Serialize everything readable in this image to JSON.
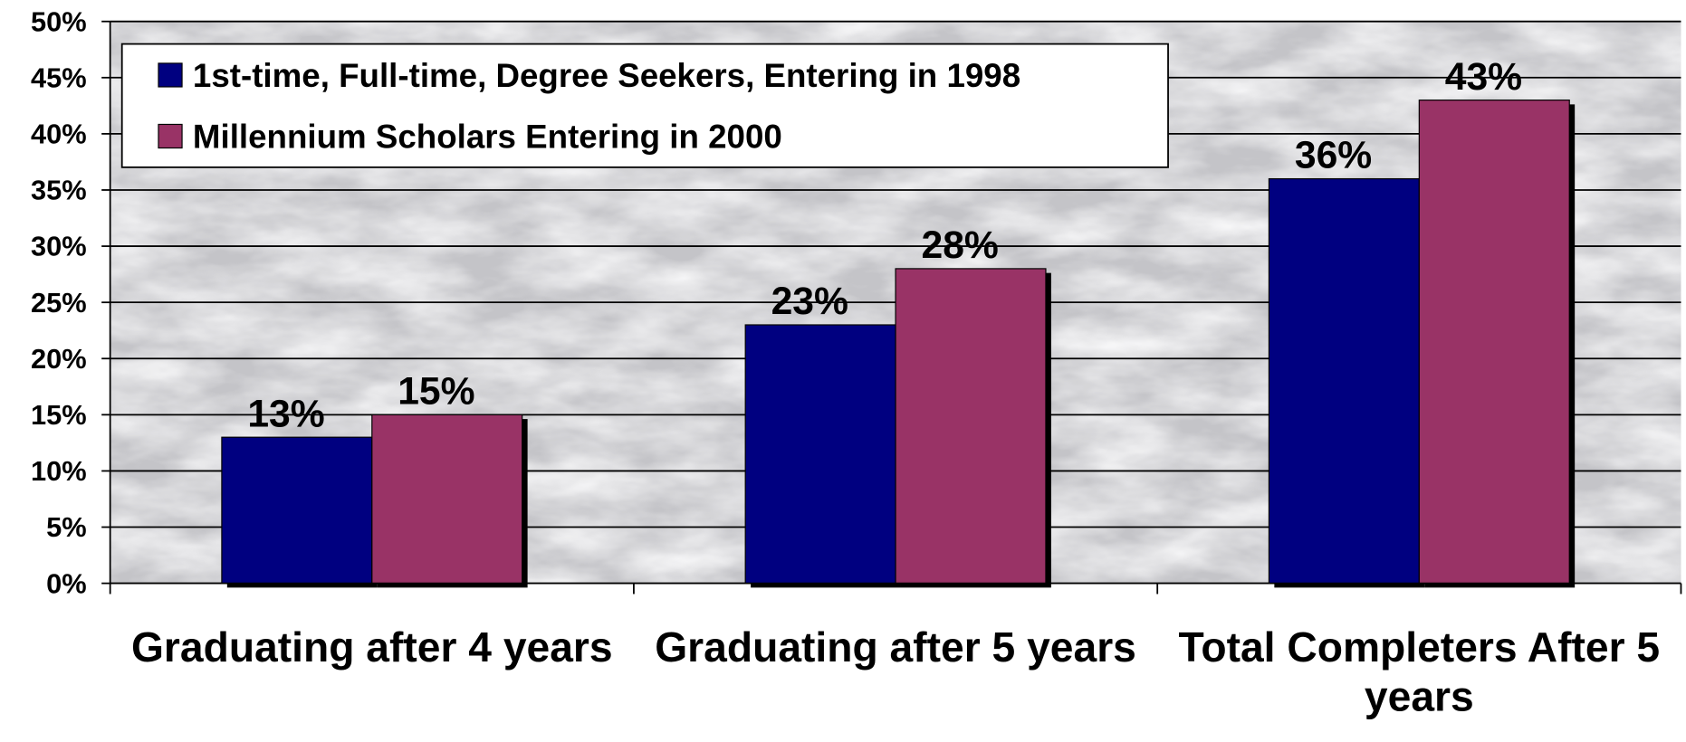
{
  "chart_data": {
    "type": "bar",
    "categories": [
      "Graduating after 4 years",
      "Graduating after 5 years",
      "Total Completers After 5 years"
    ],
    "series": [
      {
        "name": "1st-time, Full-time, Degree Seekers, Entering in 1998",
        "color": "#000080",
        "values": [
          13,
          23,
          36
        ],
        "value_labels": [
          "13%",
          "23%",
          "36%"
        ]
      },
      {
        "name": "Millennium Scholars Entering in 2000",
        "color": "#993366",
        "values": [
          15,
          28,
          43
        ],
        "value_labels": [
          "15%",
          "28%",
          "43%"
        ]
      }
    ],
    "ylim": [
      0,
      50
    ],
    "yticks": [
      {
        "value": 0,
        "label": "0%"
      },
      {
        "value": 5,
        "label": "5%"
      },
      {
        "value": 10,
        "label": "10%"
      },
      {
        "value": 15,
        "label": "15%"
      },
      {
        "value": 20,
        "label": "20%"
      },
      {
        "value": 25,
        "label": "25%"
      },
      {
        "value": 30,
        "label": "30%"
      },
      {
        "value": 35,
        "label": "35%"
      },
      {
        "value": 40,
        "label": "40%"
      },
      {
        "value": 45,
        "label": "45%"
      },
      {
        "value": 50,
        "label": "50%"
      }
    ],
    "grid": true,
    "legend": "top-left"
  }
}
